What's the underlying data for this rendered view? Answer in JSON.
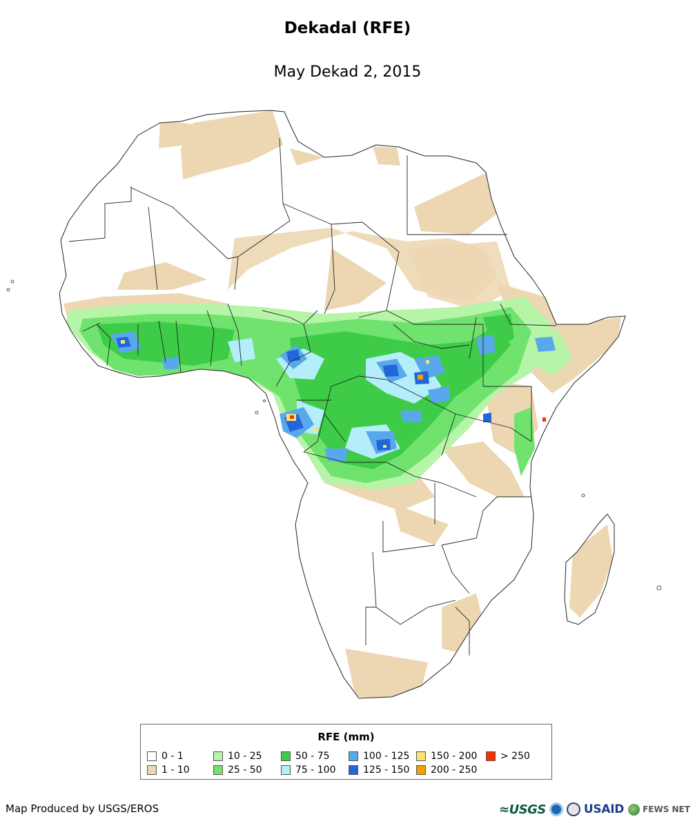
{
  "map": {
    "title": "Dekadal (RFE)",
    "subtitle": "May Dekad 2, 2015"
  },
  "legend": {
    "title": "RFE (mm)",
    "classes": [
      {
        "label": "0 - 1",
        "color": "#ffffff"
      },
      {
        "label": "1 - 10",
        "color": "#ecd7b2"
      },
      {
        "label": "10 - 25",
        "color": "#b6f4a8"
      },
      {
        "label": "25 - 50",
        "color": "#70e26e"
      },
      {
        "label": "50 - 75",
        "color": "#3ecc48"
      },
      {
        "label": "75 - 100",
        "color": "#b4eefa"
      },
      {
        "label": "100 - 125",
        "color": "#5aa8ec"
      },
      {
        "label": "125 - 150",
        "color": "#2267d8"
      },
      {
        "label": "150 - 200",
        "color": "#fde27a"
      },
      {
        "label": "200 - 250",
        "color": "#f5a000"
      },
      {
        "label": "> 250",
        "color": "#f53200"
      }
    ]
  },
  "footer": {
    "credit": "Map Produced by USGS/EROS",
    "logos": {
      "usgs": "≈USGS",
      "usaid": "USAID",
      "fews": "FEWS NET"
    }
  }
}
